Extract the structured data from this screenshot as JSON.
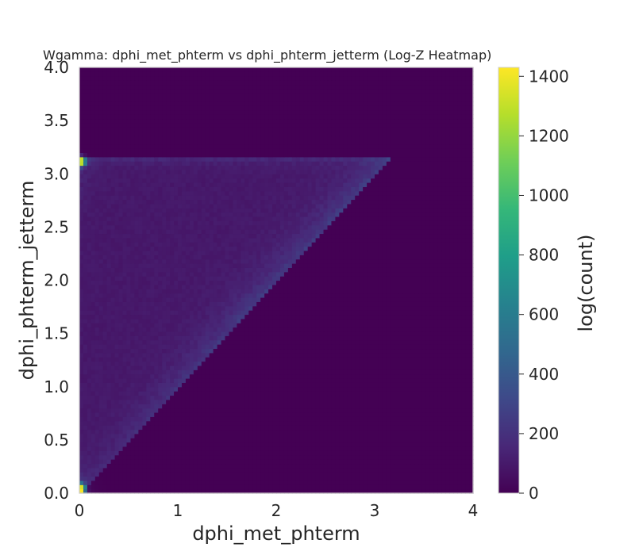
{
  "chart_data": {
    "type": "heatmap",
    "title": "Wgamma: dphi_met_phterm vs dphi_phterm_jetterm (Log-Z Heatmap)",
    "xlabel": "dphi_met_phterm",
    "ylabel": "dphi_phterm_jetterm",
    "colorbar_label": "log(count)",
    "xlim": [
      0,
      4
    ],
    "ylim": [
      0,
      4
    ],
    "zlim": [
      0,
      1430
    ],
    "x_ticks": [
      "0",
      "1",
      "2",
      "3",
      "4"
    ],
    "y_ticks": [
      "0.0",
      "0.5",
      "1.0",
      "1.5",
      "2.0",
      "2.5",
      "3.0",
      "3.5",
      "4.0"
    ],
    "colorbar_ticks": [
      "0",
      "200",
      "400",
      "600",
      "800",
      "1000",
      "1200",
      "1400"
    ],
    "colormap": "viridis",
    "grid": false,
    "bins": {
      "nx": 100,
      "ny": 100
    },
    "features": [
      {
        "region": "triangle band",
        "x_range": [
          0,
          3.14
        ],
        "y_range": [
          0,
          3.14
        ],
        "description": "populated region between y = x and y = pi",
        "typical_value": 120
      },
      {
        "region": "diagonal edge y = x",
        "typical_value": 220
      },
      {
        "hotspot": "x=0.02, y=3.12",
        "value": 1400
      },
      {
        "hotspot": "x=0.02, y=0.04",
        "value": 1300
      }
    ]
  },
  "colors": {
    "viridis": [
      "#440154",
      "#482878",
      "#3e4989",
      "#31688e",
      "#26828e",
      "#1f9e89",
      "#35b779",
      "#6ece58",
      "#b5de2b",
      "#fde725"
    ],
    "background": "#ffffff",
    "frame": "#cccccc",
    "text": "#262626"
  }
}
